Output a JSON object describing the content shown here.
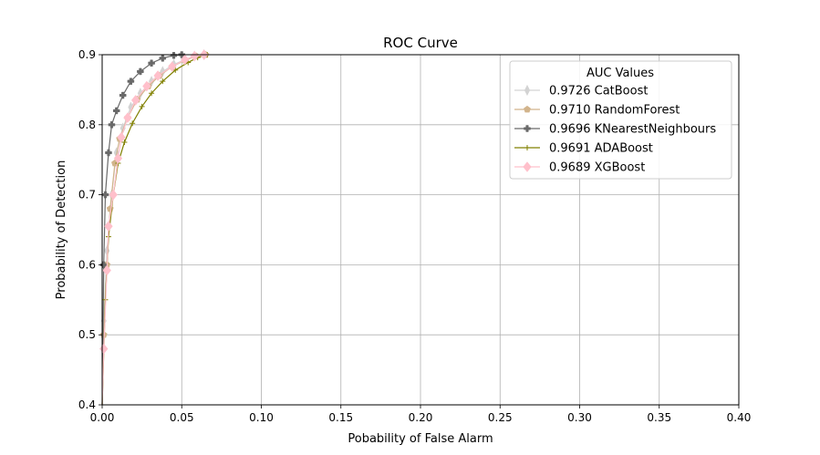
{
  "chart_data": {
    "type": "line",
    "title": "ROC Curve",
    "xlabel": "Pobability of False Alarm",
    "ylabel": "Probability of Detection",
    "xlim": [
      0.0,
      0.4
    ],
    "ylim": [
      0.4,
      0.9
    ],
    "xticks": [
      0.0,
      0.05,
      0.1,
      0.15,
      0.2,
      0.25,
      0.3,
      0.35,
      0.4
    ],
    "xtick_labels": [
      "0.00",
      "0.05",
      "0.10",
      "0.15",
      "0.20",
      "0.25",
      "0.30",
      "0.35",
      "0.40"
    ],
    "yticks": [
      0.4,
      0.5,
      0.6,
      0.7,
      0.8,
      0.9
    ],
    "ytick_labels": [
      "0.4",
      "0.5",
      "0.6",
      "0.7",
      "0.8",
      "0.9"
    ],
    "grid": true,
    "legend": {
      "title": "AUC Values",
      "position": "top-right"
    },
    "series": [
      {
        "name": "0.9726 CatBoost",
        "color": "#d3d3d3",
        "marker": "thin-diamond",
        "x": [
          0.0,
          0.001,
          0.003,
          0.006,
          0.009,
          0.013,
          0.018,
          0.024,
          0.031,
          0.038,
          0.045,
          0.052,
          0.058,
          0.064
        ],
        "y": [
          0.4,
          0.52,
          0.62,
          0.7,
          0.76,
          0.795,
          0.825,
          0.845,
          0.862,
          0.876,
          0.886,
          0.893,
          0.898,
          0.9
        ]
      },
      {
        "name": "0.9710 RandomForest",
        "color": "#d2b48c",
        "marker": "pentagon",
        "x": [
          0.0,
          0.001,
          0.003,
          0.005,
          0.008,
          0.011,
          0.016,
          0.022,
          0.029,
          0.036,
          0.044,
          0.052,
          0.059,
          0.065
        ],
        "y": [
          0.4,
          0.5,
          0.6,
          0.68,
          0.745,
          0.78,
          0.81,
          0.836,
          0.855,
          0.87,
          0.883,
          0.892,
          0.898,
          0.9
        ]
      },
      {
        "name": "0.9696 KNearestNeighbours",
        "color": "#696969",
        "marker": "plus-filled",
        "x": [
          0.0,
          0.001,
          0.002,
          0.004,
          0.006,
          0.009,
          0.013,
          0.018,
          0.024,
          0.031,
          0.038,
          0.045,
          0.05
        ],
        "y": [
          0.4,
          0.6,
          0.7,
          0.76,
          0.8,
          0.82,
          0.842,
          0.862,
          0.876,
          0.888,
          0.895,
          0.899,
          0.9
        ]
      },
      {
        "name": "0.9691 ADABoost",
        "color": "#808000",
        "marker": "plus",
        "x": [
          0.0,
          0.002,
          0.004,
          0.007,
          0.01,
          0.014,
          0.019,
          0.025,
          0.031,
          0.038,
          0.046,
          0.054,
          0.06,
          0.066
        ],
        "y": [
          0.4,
          0.55,
          0.64,
          0.7,
          0.745,
          0.775,
          0.802,
          0.826,
          0.845,
          0.862,
          0.878,
          0.889,
          0.896,
          0.9
        ]
      },
      {
        "name": "0.9689 XGBoost",
        "color": "#ffc0cb",
        "marker": "diamond",
        "x": [
          0.0,
          0.001,
          0.003,
          0.004,
          0.007,
          0.01,
          0.012,
          0.016,
          0.021,
          0.028,
          0.035,
          0.044,
          0.052,
          0.058,
          0.064
        ],
        "y": [
          0.4,
          0.48,
          0.592,
          0.655,
          0.7,
          0.752,
          0.782,
          0.81,
          0.835,
          0.855,
          0.87,
          0.883,
          0.893,
          0.898,
          0.9
        ]
      }
    ]
  }
}
